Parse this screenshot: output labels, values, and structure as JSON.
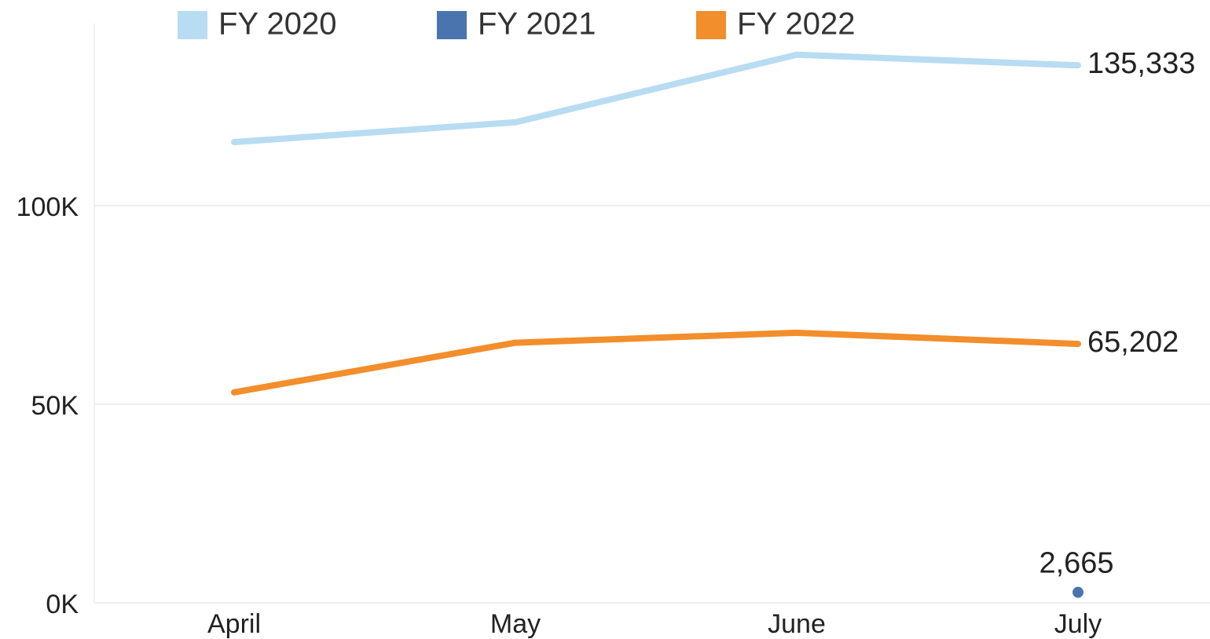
{
  "chart_data": {
    "type": "line",
    "categories": [
      "April",
      "May",
      "June",
      "July"
    ],
    "series": [
      {
        "name": "FY 2020",
        "color": "#b8dcf2",
        "values": [
          116000,
          121000,
          138000,
          135333
        ]
      },
      {
        "name": "FY 2021",
        "color": "#4a74ae",
        "values": [
          null,
          null,
          null,
          2665
        ]
      },
      {
        "name": "FY 2022",
        "color": "#f28e2b",
        "values": [
          53000,
          65500,
          68000,
          65202
        ]
      }
    ],
    "data_labels": [
      {
        "series": "FY 2020",
        "category": "July",
        "text": "135,333"
      },
      {
        "series": "FY 2022",
        "category": "July",
        "text": "65,202"
      },
      {
        "series": "FY 2021",
        "category": "July",
        "text": "2,665"
      }
    ],
    "y_ticks": [
      {
        "value": 0,
        "label": "0K"
      },
      {
        "value": 50000,
        "label": "50K"
      },
      {
        "value": 100000,
        "label": "100K"
      }
    ],
    "ylim": [
      0,
      145000
    ],
    "grid": true,
    "legend_position": "top-left",
    "title": "",
    "xlabel": "",
    "ylabel": ""
  }
}
